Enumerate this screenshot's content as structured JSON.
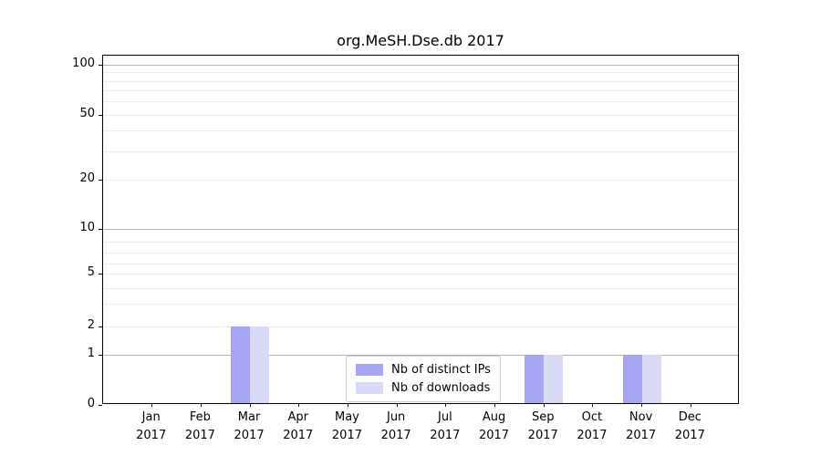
{
  "title": "org.MeSH.Dse.db 2017",
  "chart_data": {
    "type": "bar",
    "title": "org.MeSH.Dse.db 2017",
    "categories": [
      "Jan",
      "Feb",
      "Mar",
      "Apr",
      "May",
      "Jun",
      "Jul",
      "Aug",
      "Sep",
      "Oct",
      "Nov",
      "Dec"
    ],
    "year": "2017",
    "series": [
      {
        "name": "Nb of distinct IPs",
        "color": "#a6a6f5",
        "values": [
          0,
          0,
          2,
          0,
          0,
          0,
          0,
          0,
          1,
          0,
          1,
          0
        ]
      },
      {
        "name": "Nb of downloads",
        "color": "#d9d9f8",
        "values": [
          0,
          0,
          2,
          0,
          0,
          0,
          0,
          0,
          1,
          0,
          1,
          0
        ]
      }
    ],
    "yticks": [
      100,
      50,
      20,
      10,
      5,
      2,
      1,
      0
    ],
    "ylim": [
      0,
      100
    ],
    "yscale": "log-like",
    "grid": true,
    "legend_position": "bottom-center",
    "colors": {
      "axis": "#000000",
      "major_gridline": "#b4b4b4",
      "minor_gridline": "#ebebeb",
      "legend_border": "#cccccc",
      "background": "#ffffff"
    }
  }
}
